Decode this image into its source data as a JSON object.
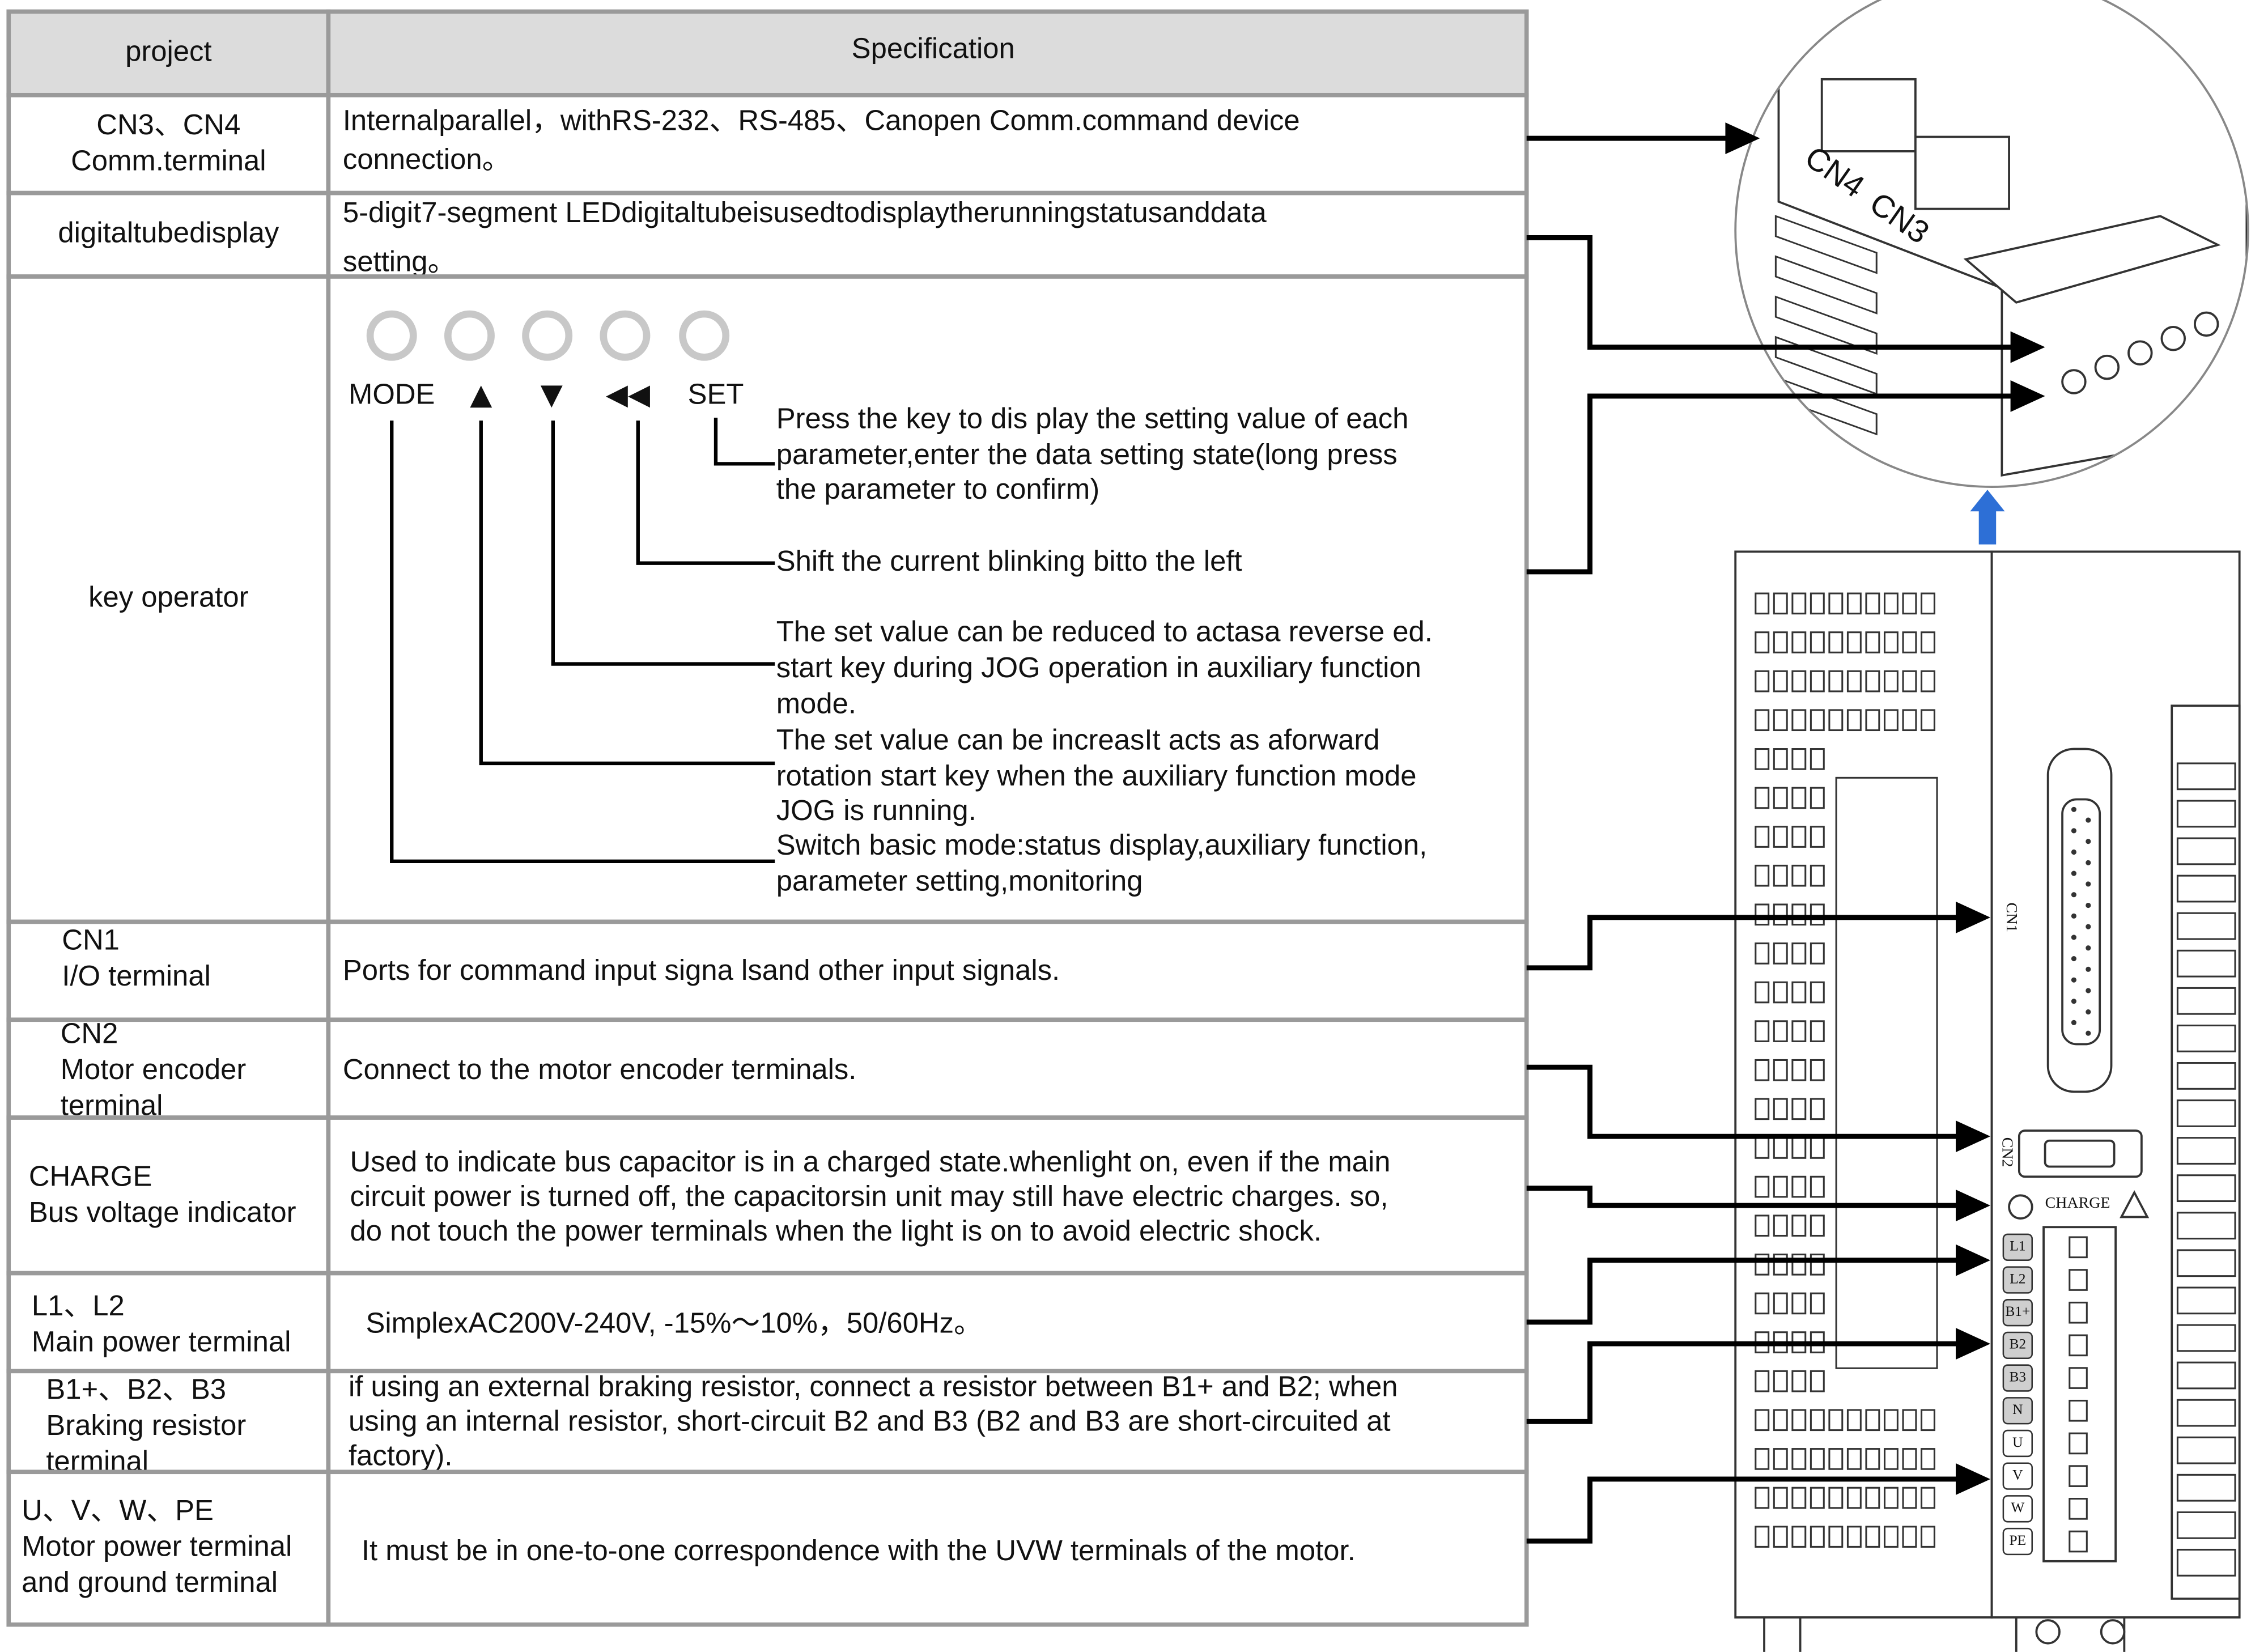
{
  "table": {
    "header": [
      "project",
      "Specification"
    ],
    "rows": [
      {
        "label": [
          "CN3、CN4",
          "Comm.terminal"
        ],
        "spec": [
          "Internalparallel，withRS-232、RS-485、Canopen Comm.command device",
          "connection。"
        ]
      },
      {
        "label": [
          "digitaltubedisplay"
        ],
        "spec": [
          "5-digit7-segment LEDdigitaltubeisusedtodisplaytherunningstatusanddata",
          "setting。"
        ]
      },
      {
        "label": [
          "key operator"
        ],
        "keys": [
          "MODE",
          "▲",
          "▼",
          "◀◀",
          "SET"
        ],
        "descriptions": [
          [
            "Switch basic mode:status display,auxiliary function,",
            "parameter setting,monitoring"
          ],
          [
            "The set value can be increasIt acts as aforward",
            "rotation start key when the auxiliary function mode",
            "JOG is running."
          ],
          [
            "The set value can be reduced to actasa reverse ed.",
            "start key during JOG operation in auxiliary function",
            "mode."
          ],
          [
            "Shift the current blinking bitto the left"
          ],
          [
            "Press the key to dis play the setting value of each",
            "parameter,enter the data setting state(long press",
            "the parameter to confirm)"
          ]
        ]
      },
      {
        "label": [
          "CN1",
          "I/O terminal"
        ],
        "spec": [
          "Ports for command input signa lsand other input signals."
        ]
      },
      {
        "label": [
          "CN2",
          "Motor encoder",
          "terminal"
        ],
        "spec": [
          "Connect to the motor encoder terminals."
        ]
      },
      {
        "label": [
          "CHARGE",
          "Bus voltage indicator"
        ],
        "spec": [
          "Used to indicate bus capacitor is in a charged state.whenlight on, even if the main",
          "circuit power is turned off, the capacitorsin unit may still have electric charges. so,",
          "do not touch the power terminals when the light is on to avoid electric shock."
        ]
      },
      {
        "label": [
          "L1、L2",
          "Main power terminal"
        ],
        "spec": [
          "SimplexAC200V-240V, -15%～10%，50/60Hz。"
        ]
      },
      {
        "label": [
          "B1+、B2、B3",
          "Braking resistor",
          "terminal"
        ],
        "spec": [
          "if using an external braking resistor, connect a resistor between B1+ and B2; when",
          "using an internal resistor, short-circuit B2 and B3 (B2 and B3 are short-circuited at",
          "factory)."
        ]
      },
      {
        "label": [
          "U、V、W、PE",
          "Motor power terminal",
          "and ground terminal"
        ],
        "spec": [
          "It must be in one-to-one correspondence with the UVW terminals of the motor."
        ]
      }
    ]
  },
  "device": {
    "comm_labels": [
      "CN4",
      "CN3"
    ],
    "cn1": "CN1",
    "cn2": "CN2",
    "charge": "CHARGE",
    "terminals": [
      "L1",
      "L2",
      "B1+",
      "B2",
      "B3",
      "N",
      "U",
      "V",
      "W",
      "PE"
    ]
  }
}
